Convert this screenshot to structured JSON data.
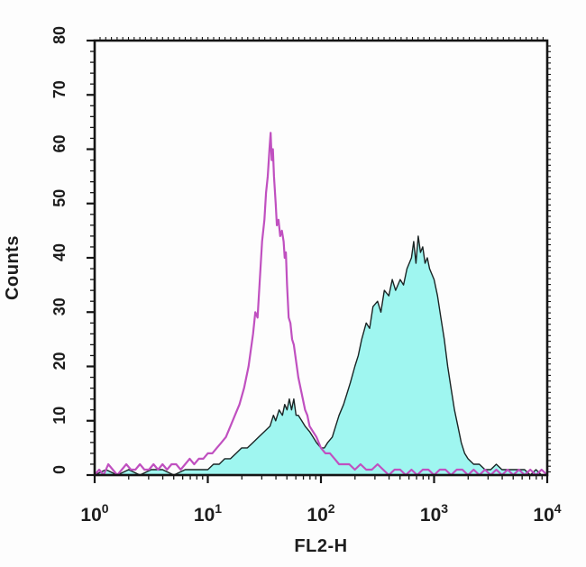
{
  "chart_data": {
    "type": "area",
    "subtype": "flow-cytometry-histogram-overlay",
    "title": "",
    "xlabel": "FL2-H",
    "ylabel": "Counts",
    "x_scale": "log10",
    "xlim_exponents": [
      0,
      4
    ],
    "ylim": [
      0,
      80
    ],
    "x_tick_base": "10",
    "x_tick_exponents": [
      "0",
      "1",
      "2",
      "3",
      "4"
    ],
    "y_tick_labels": [
      "0",
      "10",
      "20",
      "30",
      "40",
      "50",
      "60",
      "70",
      "80"
    ],
    "grid": false,
    "legend": "none",
    "frame_color": "#151515",
    "background_color": "#fdfdfd",
    "series": [
      {
        "name": "filled_cyan_histogram",
        "style": "filled",
        "fill_color": "#9ff6f0",
        "line_color": "#1a2424",
        "line_width": 1.4,
        "points_log10x_counts": [
          [
            0.0,
            0
          ],
          [
            0.1,
            1
          ],
          [
            0.2,
            0
          ],
          [
            0.3,
            1
          ],
          [
            0.4,
            0
          ],
          [
            0.5,
            1
          ],
          [
            0.6,
            1
          ],
          [
            0.7,
            0
          ],
          [
            0.8,
            1
          ],
          [
            0.9,
            1
          ],
          [
            1.0,
            1
          ],
          [
            1.05,
            2
          ],
          [
            1.1,
            2
          ],
          [
            1.15,
            3
          ],
          [
            1.2,
            3
          ],
          [
            1.25,
            4
          ],
          [
            1.3,
            5
          ],
          [
            1.35,
            5
          ],
          [
            1.4,
            6
          ],
          [
            1.45,
            7
          ],
          [
            1.5,
            8
          ],
          [
            1.55,
            9
          ],
          [
            1.58,
            11
          ],
          [
            1.6,
            10
          ],
          [
            1.63,
            12
          ],
          [
            1.66,
            11
          ],
          [
            1.68,
            13
          ],
          [
            1.7,
            12
          ],
          [
            1.72,
            14
          ],
          [
            1.74,
            12
          ],
          [
            1.76,
            14
          ],
          [
            1.78,
            11
          ],
          [
            1.8,
            11
          ],
          [
            1.83,
            10
          ],
          [
            1.86,
            9
          ],
          [
            1.9,
            8
          ],
          [
            1.93,
            7
          ],
          [
            1.96,
            6
          ],
          [
            2.0,
            5
          ],
          [
            2.03,
            5
          ],
          [
            2.06,
            6
          ],
          [
            2.1,
            7
          ],
          [
            2.13,
            9
          ],
          [
            2.16,
            11
          ],
          [
            2.2,
            13
          ],
          [
            2.23,
            15
          ],
          [
            2.26,
            17
          ],
          [
            2.3,
            20
          ],
          [
            2.33,
            22
          ],
          [
            2.36,
            25
          ],
          [
            2.4,
            28
          ],
          [
            2.43,
            27
          ],
          [
            2.46,
            31
          ],
          [
            2.5,
            32
          ],
          [
            2.53,
            30
          ],
          [
            2.56,
            34
          ],
          [
            2.6,
            33
          ],
          [
            2.63,
            36
          ],
          [
            2.66,
            34
          ],
          [
            2.7,
            36
          ],
          [
            2.73,
            35
          ],
          [
            2.76,
            38
          ],
          [
            2.8,
            40
          ],
          [
            2.82,
            43
          ],
          [
            2.84,
            39
          ],
          [
            2.86,
            44
          ],
          [
            2.88,
            41
          ],
          [
            2.9,
            42
          ],
          [
            2.92,
            39
          ],
          [
            2.94,
            40
          ],
          [
            2.96,
            38
          ],
          [
            2.98,
            37
          ],
          [
            3.0,
            36
          ],
          [
            3.03,
            33
          ],
          [
            3.06,
            29
          ],
          [
            3.09,
            25
          ],
          [
            3.12,
            20
          ],
          [
            3.15,
            16
          ],
          [
            3.18,
            12
          ],
          [
            3.21,
            9
          ],
          [
            3.24,
            6
          ],
          [
            3.27,
            4
          ],
          [
            3.3,
            3
          ],
          [
            3.35,
            2
          ],
          [
            3.4,
            2
          ],
          [
            3.45,
            1
          ],
          [
            3.5,
            1
          ],
          [
            3.55,
            2
          ],
          [
            3.6,
            1
          ],
          [
            3.65,
            1
          ],
          [
            3.7,
            1
          ],
          [
            3.75,
            1
          ],
          [
            3.8,
            1
          ],
          [
            3.85,
            0
          ],
          [
            3.9,
            1
          ],
          [
            3.95,
            0
          ],
          [
            4.0,
            0
          ]
        ]
      },
      {
        "name": "open_magenta_histogram",
        "style": "open",
        "fill_color": "none",
        "line_color": "#c050c0",
        "line_width": 2.2,
        "points_log10x_counts": [
          [
            0.0,
            0
          ],
          [
            0.04,
            1
          ],
          [
            0.08,
            0
          ],
          [
            0.12,
            2
          ],
          [
            0.16,
            1
          ],
          [
            0.2,
            0
          ],
          [
            0.24,
            1
          ],
          [
            0.28,
            2
          ],
          [
            0.32,
            1
          ],
          [
            0.36,
            1
          ],
          [
            0.4,
            2
          ],
          [
            0.44,
            1
          ],
          [
            0.48,
            1
          ],
          [
            0.52,
            2
          ],
          [
            0.56,
            1
          ],
          [
            0.6,
            2
          ],
          [
            0.64,
            1
          ],
          [
            0.68,
            2
          ],
          [
            0.72,
            2
          ],
          [
            0.76,
            1
          ],
          [
            0.8,
            2
          ],
          [
            0.84,
            3
          ],
          [
            0.88,
            2
          ],
          [
            0.92,
            3
          ],
          [
            0.96,
            3
          ],
          [
            1.0,
            4
          ],
          [
            1.04,
            4
          ],
          [
            1.08,
            5
          ],
          [
            1.12,
            6
          ],
          [
            1.16,
            7
          ],
          [
            1.2,
            9
          ],
          [
            1.24,
            11
          ],
          [
            1.28,
            13
          ],
          [
            1.32,
            16
          ],
          [
            1.36,
            20
          ],
          [
            1.38,
            23
          ],
          [
            1.4,
            26
          ],
          [
            1.42,
            30
          ],
          [
            1.44,
            29
          ],
          [
            1.46,
            36
          ],
          [
            1.48,
            43
          ],
          [
            1.5,
            47
          ],
          [
            1.515,
            52
          ],
          [
            1.53,
            55
          ],
          [
            1.545,
            60
          ],
          [
            1.555,
            63
          ],
          [
            1.565,
            58
          ],
          [
            1.575,
            60
          ],
          [
            1.585,
            55
          ],
          [
            1.6,
            50
          ],
          [
            1.61,
            46
          ],
          [
            1.625,
            47
          ],
          [
            1.64,
            44
          ],
          [
            1.655,
            45
          ],
          [
            1.67,
            43
          ],
          [
            1.68,
            40
          ],
          [
            1.69,
            41
          ],
          [
            1.7,
            35
          ],
          [
            1.715,
            29
          ],
          [
            1.73,
            28
          ],
          [
            1.745,
            25
          ],
          [
            1.76,
            24
          ],
          [
            1.78,
            21
          ],
          [
            1.8,
            18
          ],
          [
            1.82,
            16
          ],
          [
            1.84,
            14
          ],
          [
            1.86,
            12
          ],
          [
            1.88,
            11
          ],
          [
            1.9,
            9
          ],
          [
            1.93,
            8
          ],
          [
            1.96,
            7
          ],
          [
            2.0,
            5
          ],
          [
            2.04,
            4
          ],
          [
            2.08,
            4
          ],
          [
            2.12,
            3
          ],
          [
            2.16,
            2
          ],
          [
            2.2,
            2
          ],
          [
            2.25,
            2
          ],
          [
            2.3,
            1
          ],
          [
            2.35,
            2
          ],
          [
            2.4,
            1
          ],
          [
            2.45,
            1
          ],
          [
            2.5,
            2
          ],
          [
            2.55,
            1
          ],
          [
            2.6,
            0
          ],
          [
            2.65,
            1
          ],
          [
            2.7,
            1
          ],
          [
            2.75,
            0
          ],
          [
            2.8,
            1
          ],
          [
            2.85,
            0
          ],
          [
            2.9,
            1
          ],
          [
            2.95,
            1
          ],
          [
            3.0,
            0
          ],
          [
            3.05,
            1
          ],
          [
            3.1,
            1
          ],
          [
            3.15,
            0
          ],
          [
            3.2,
            1
          ],
          [
            3.25,
            1
          ],
          [
            3.3,
            0
          ],
          [
            3.35,
            1
          ],
          [
            3.4,
            0
          ],
          [
            3.45,
            1
          ],
          [
            3.5,
            0
          ],
          [
            3.55,
            1
          ],
          [
            3.6,
            0
          ],
          [
            3.65,
            1
          ],
          [
            3.7,
            0
          ],
          [
            3.75,
            1
          ],
          [
            3.8,
            0
          ],
          [
            3.85,
            1
          ],
          [
            3.9,
            0
          ],
          [
            3.95,
            1
          ],
          [
            4.0,
            0
          ]
        ]
      }
    ]
  }
}
